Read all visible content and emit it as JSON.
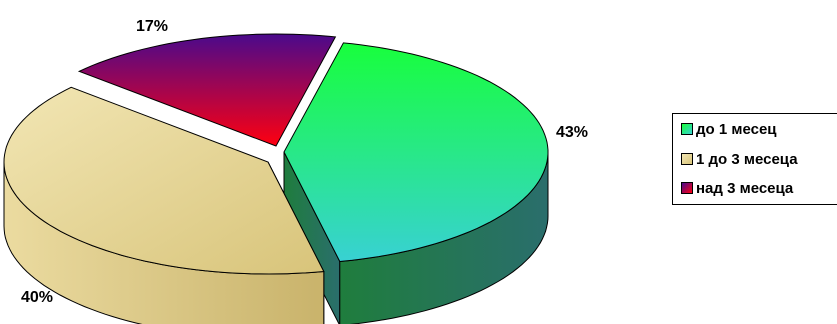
{
  "chart_data": {
    "type": "pie",
    "style": "3d-exploded",
    "categories": [
      "до 1 месец",
      "1 до 3 месеца",
      "над 3 месеца"
    ],
    "values": [
      43,
      40,
      17
    ],
    "labels": [
      "43%",
      "40%",
      "17%"
    ],
    "colors": [
      {
        "top_light": "#18ff3c",
        "top_dark": "#38d1d3",
        "side_light": "#1f7d3d",
        "side_dark": "#2a6e6c"
      },
      {
        "top_light": "#f2e6b4",
        "top_dark": "#d8c47a",
        "side_light": "#ebdba0",
        "side_dark": "#c9b36b"
      },
      {
        "top_light": "#4a0a8c",
        "top_dark": "#ff0010",
        "side_light": "#3a0d8a",
        "side_dark": "#2a0a70"
      }
    ],
    "legend_position": "right"
  }
}
